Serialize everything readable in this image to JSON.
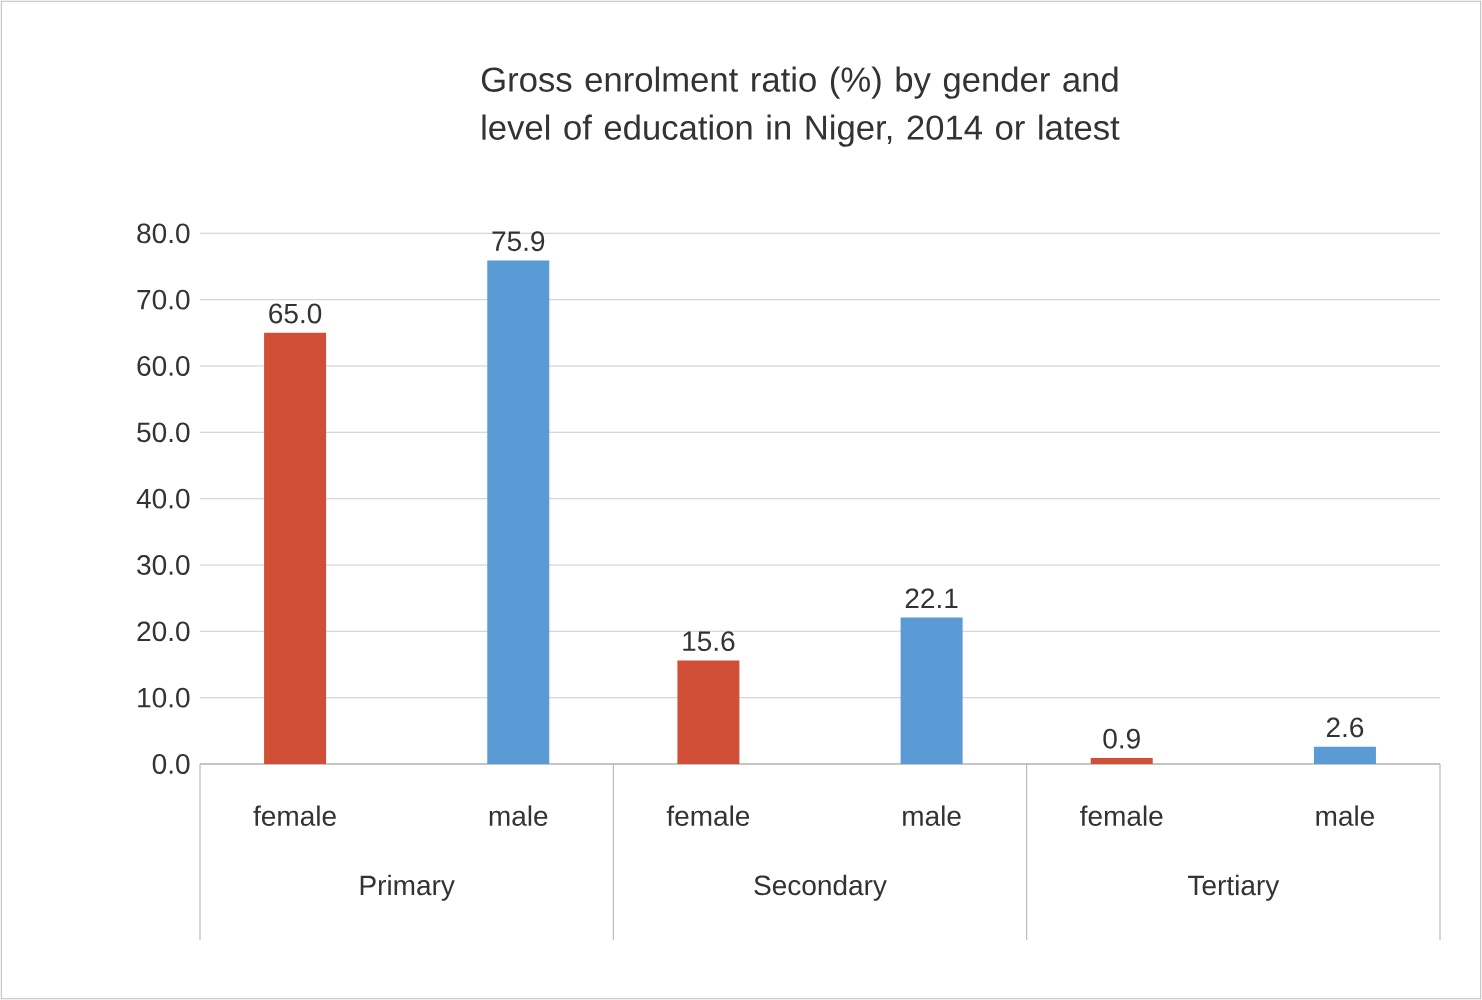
{
  "chart_data": {
    "type": "bar",
    "title": "Gross enrolment ratio (%) by gender and level of education in Niger, 2014 or latest",
    "categories": [
      "Primary",
      "Secondary",
      "Tertiary"
    ],
    "series": [
      {
        "name": "female",
        "color": "#d14f37",
        "values": [
          65.0,
          15.6,
          0.9
        ],
        "value_labels": [
          "65.0",
          "15.6",
          "0.9"
        ]
      },
      {
        "name": "male",
        "color": "#5b9bd5",
        "values": [
          75.9,
          22.1,
          2.6
        ],
        "value_labels": [
          "75.9",
          "22.1",
          "2.6"
        ]
      }
    ],
    "ylim": [
      0,
      80
    ],
    "yticks": [
      {
        "value": 0,
        "label": "0.0"
      },
      {
        "value": 10,
        "label": "10.0"
      },
      {
        "value": 20,
        "label": "20.0"
      },
      {
        "value": 30,
        "label": "30.0"
      },
      {
        "value": 40,
        "label": "40.0"
      },
      {
        "value": 50,
        "label": "50.0"
      },
      {
        "value": 60,
        "label": "60.0"
      },
      {
        "value": 70,
        "label": "70.0"
      },
      {
        "value": 80,
        "label": "80.0"
      }
    ],
    "grid": "y"
  }
}
